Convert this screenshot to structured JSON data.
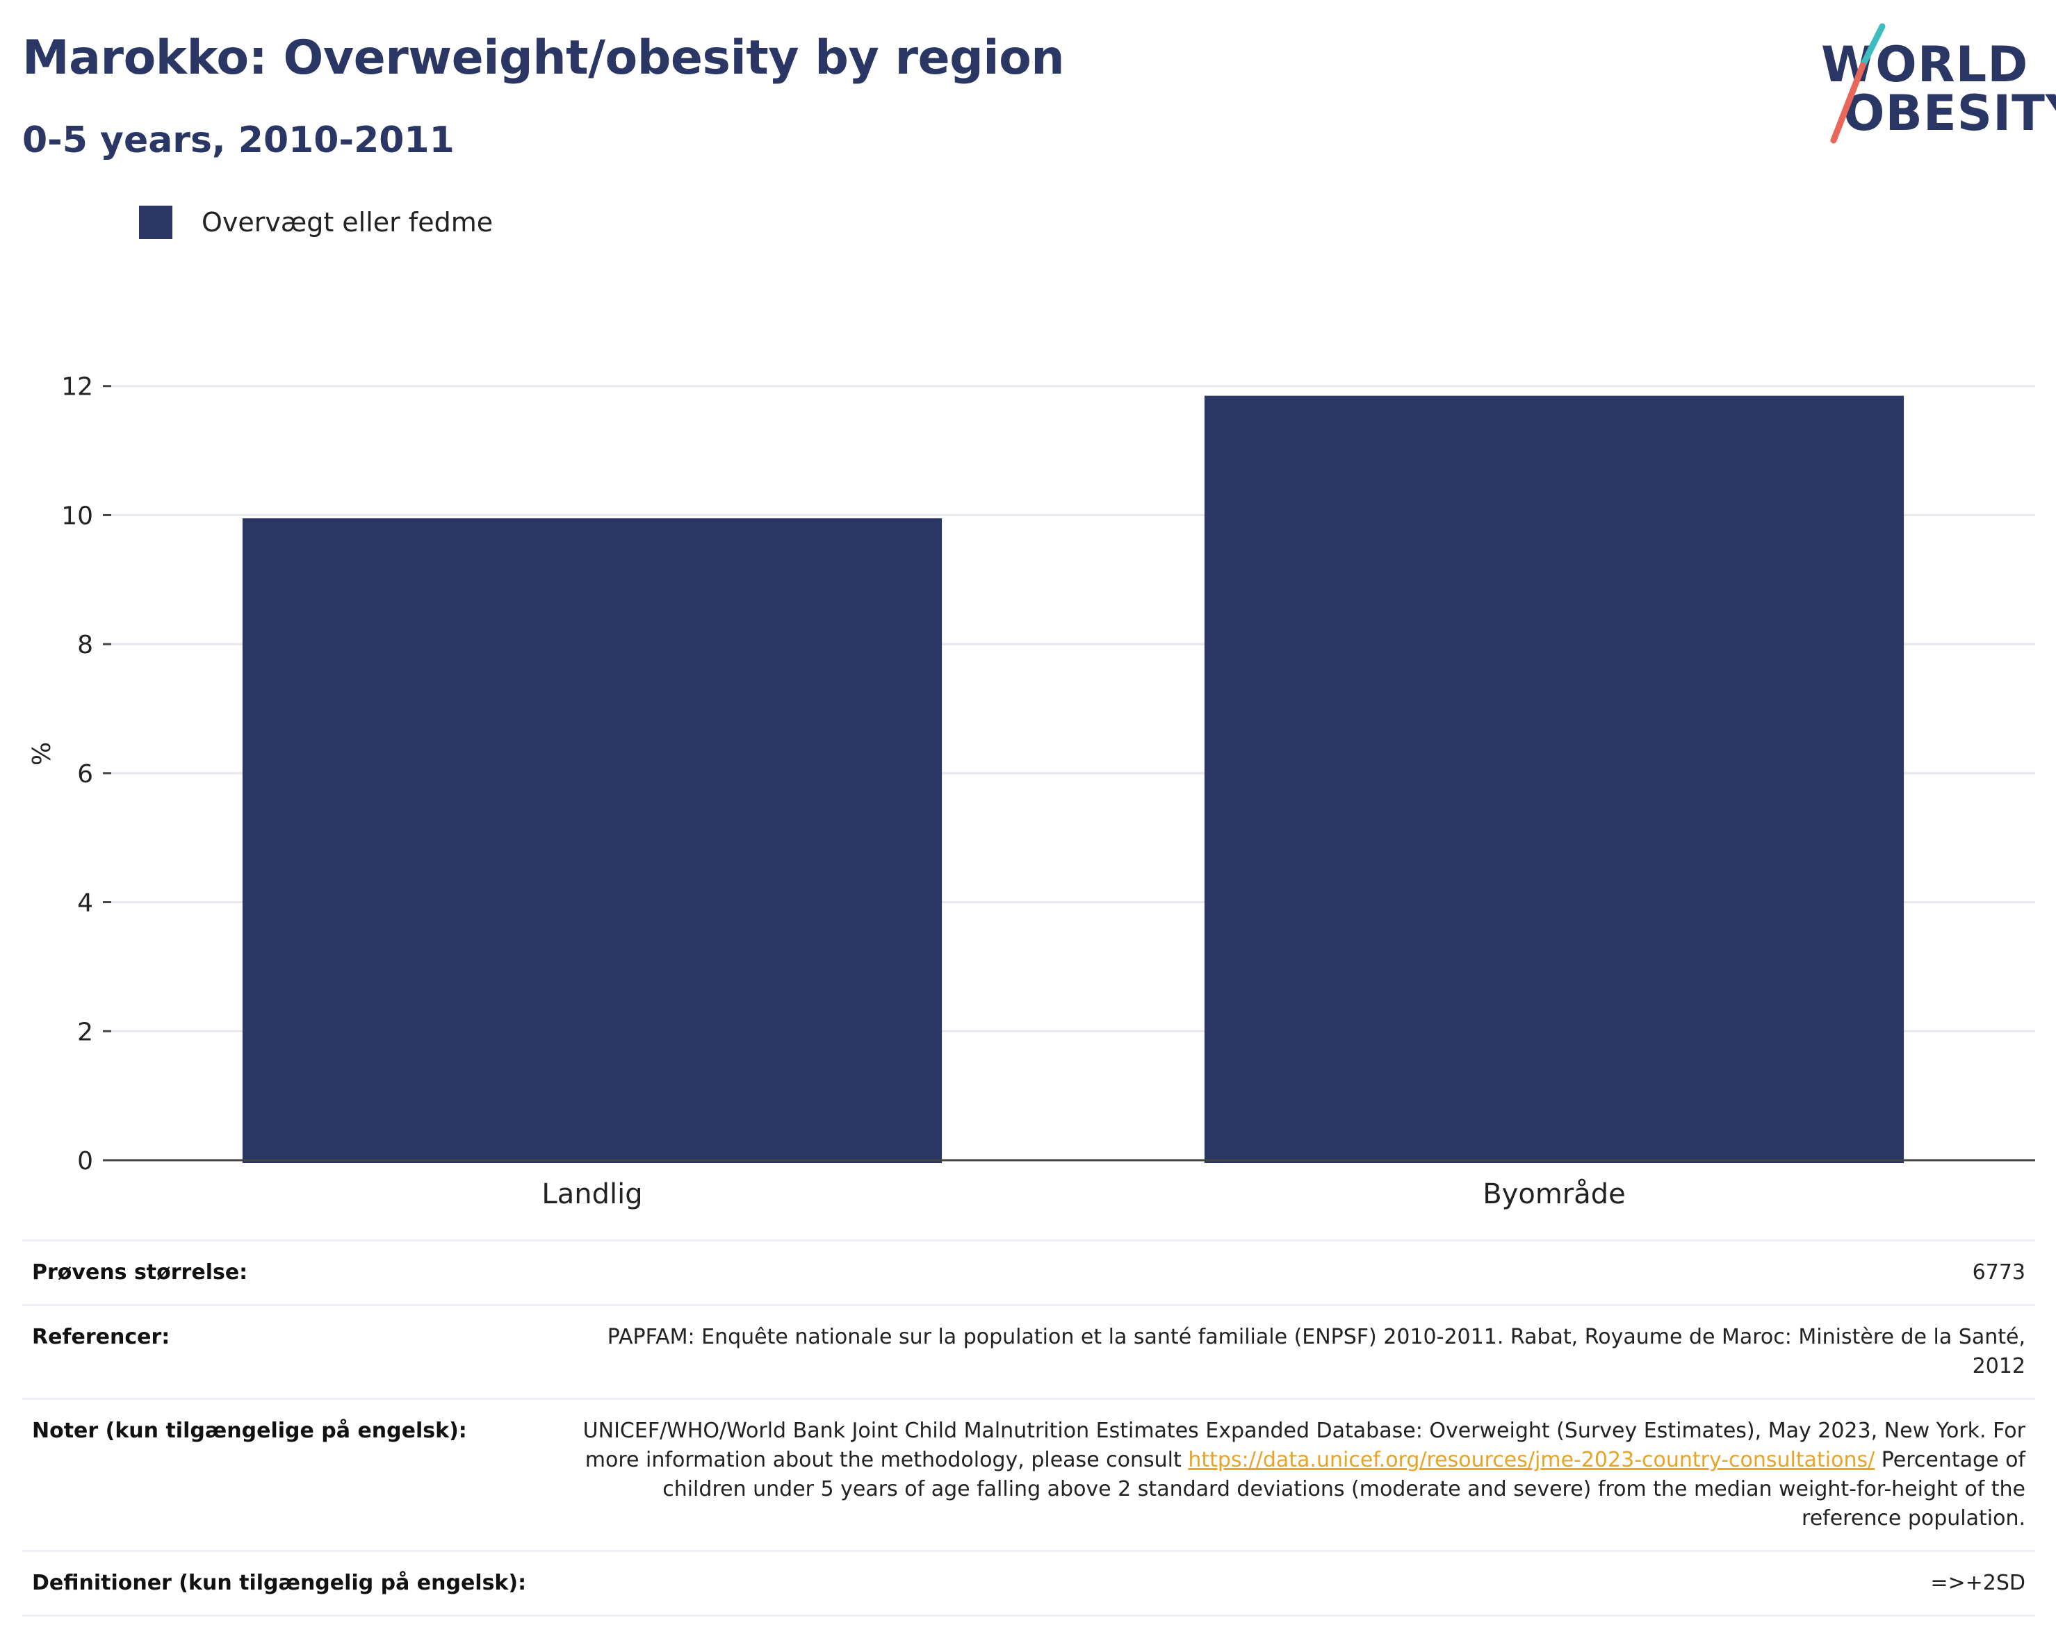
{
  "header": {
    "title": "Marokko: Overweight/obesity by region",
    "subtitle": "0-5 years, 2010-2011"
  },
  "logo": {
    "line1": "WORLD",
    "line2": "OBESITY",
    "colors": {
      "text": "#2a3663",
      "slash_top": "#3ebcc0",
      "slash_bottom": "#e8675a"
    }
  },
  "legend": {
    "label": "Overvægt eller fedme",
    "color": "#2a3663"
  },
  "chart_data": {
    "type": "bar",
    "categories": [
      "Landlig",
      "Byområde"
    ],
    "series": [
      {
        "name": "Overvægt eller fedme",
        "values": [
          9.95,
          11.85
        ],
        "color": "#2a3663"
      }
    ],
    "ylabel": "%",
    "ylim": [
      0,
      12.6
    ],
    "yticks": [
      0,
      2,
      4,
      6,
      8,
      10,
      12
    ],
    "grid": true,
    "legend_position": "top-left"
  },
  "info": [
    {
      "key": "Prøvens størrelse:",
      "value": "6773"
    },
    {
      "key": "Referencer:",
      "value": "PAPFAM: Enquête nationale sur la population et la santé familiale (ENPSF) 2010-2011. Rabat, Royaume de Maroc: Ministère de la Santé, 2012"
    },
    {
      "key": "Noter (kun tilgængelige på engelsk):",
      "value_pre": "UNICEF/WHO/World Bank Joint Child Malnutrition Estimates Expanded Database: Overweight (Survey Estimates), May 2023, New York. For more information about the methodology, please consult ",
      "link": "https://data.unicef.org/resources/jme-2023-country-consultations/",
      "value_post": " Percentage of children under 5 years of age falling above 2 standard deviations (moderate and severe) from the median weight-for-height of the reference population."
    },
    {
      "key": "Definitioner (kun tilgængelig på engelsk):",
      "value": "=>+2SD"
    }
  ]
}
